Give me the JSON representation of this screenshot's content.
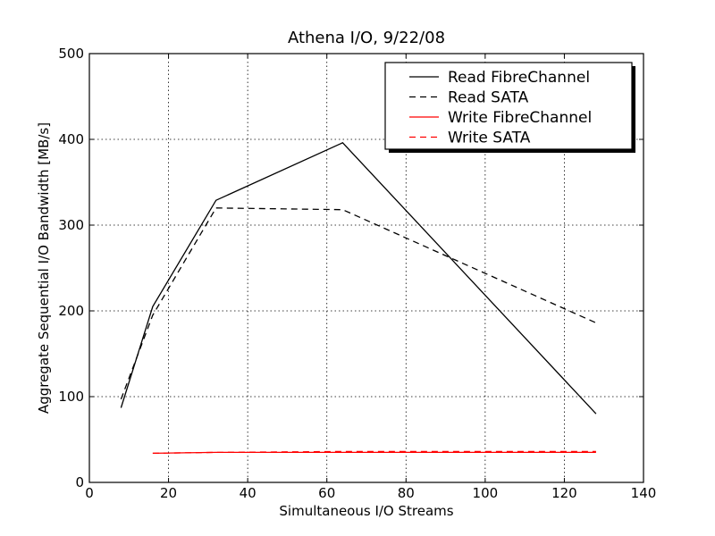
{
  "chart_data": {
    "type": "line",
    "title": "Athena I/O, 9/22/08",
    "xlabel": "Simultaneous I/O Streams",
    "ylabel": "Aggregate Sequential I/O Bandwidth [MB/s]",
    "xlim": [
      0,
      140
    ],
    "ylim": [
      0,
      500
    ],
    "xticks": [
      0,
      20,
      40,
      60,
      80,
      100,
      120,
      140
    ],
    "yticks": [
      0,
      100,
      200,
      300,
      400,
      500
    ],
    "grid": true,
    "legend_position": "top-right",
    "series": [
      {
        "name": "Read FibreChannel",
        "color": "#000000",
        "dash": "solid",
        "x": [
          8,
          16,
          32,
          64,
          128
        ],
        "y": [
          87,
          205,
          329,
          396,
          80
        ]
      },
      {
        "name": "Read SATA",
        "color": "#000000",
        "dash": "dashed",
        "x": [
          8,
          16,
          32,
          64,
          128
        ],
        "y": [
          97,
          195,
          320,
          318,
          186
        ]
      },
      {
        "name": "Write FibreChannel",
        "color": "#ff0000",
        "dash": "solid",
        "x": [
          16,
          32,
          64,
          128
        ],
        "y": [
          34,
          35,
          35,
          35
        ]
      },
      {
        "name": "Write SATA",
        "color": "#ff0000",
        "dash": "dashed",
        "x": [
          16,
          32,
          64,
          128
        ],
        "y": [
          34,
          35,
          36,
          36
        ]
      }
    ]
  }
}
